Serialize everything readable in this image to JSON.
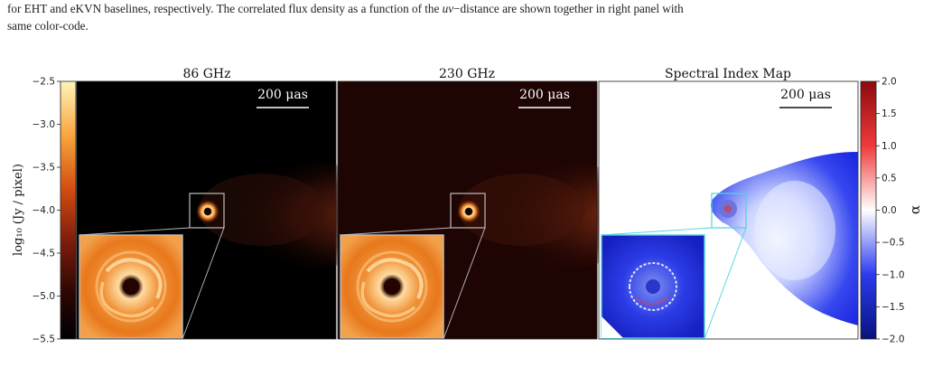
{
  "caption": {
    "line1_pre": "for EHT and eKVN baselines, respectively. The correlated flux density as a function of the ",
    "line1_math": "uv",
    "line1_post": "−distance are shown together in right panel with",
    "line2": "same color-code."
  },
  "panels": [
    {
      "title": "86 GHz",
      "scalebar": "200 μas"
    },
    {
      "title": "230 GHz",
      "scalebar": "200 μas"
    },
    {
      "title": "Spectral Index Map",
      "scalebar": "200 μas"
    }
  ],
  "left_colorbar": {
    "label": "log₁₀ (Jy / pixel)",
    "ticks": [
      "−2.5",
      "−3.0",
      "−3.5",
      "−4.0",
      "−4.5",
      "−5.0",
      "−5.5"
    ]
  },
  "right_colorbar": {
    "label": "α",
    "ticks": [
      "2.0",
      "1.5",
      "1.0",
      "0.5",
      "0.0",
      "−0.5",
      "−1.0",
      "−1.5",
      "−2.0"
    ]
  },
  "colors": {
    "inferno_dark": "#000000",
    "inferno_orange": "#f08a1e",
    "inferno_yellow": "#fff6c8",
    "panel2_bg": "#1e0503",
    "alpha_red": "#a50f15",
    "alpha_blue": "#08137a",
    "inset_box_gray": "#c8c8c8",
    "inset_box_cyan": "#4dd2e0"
  }
}
